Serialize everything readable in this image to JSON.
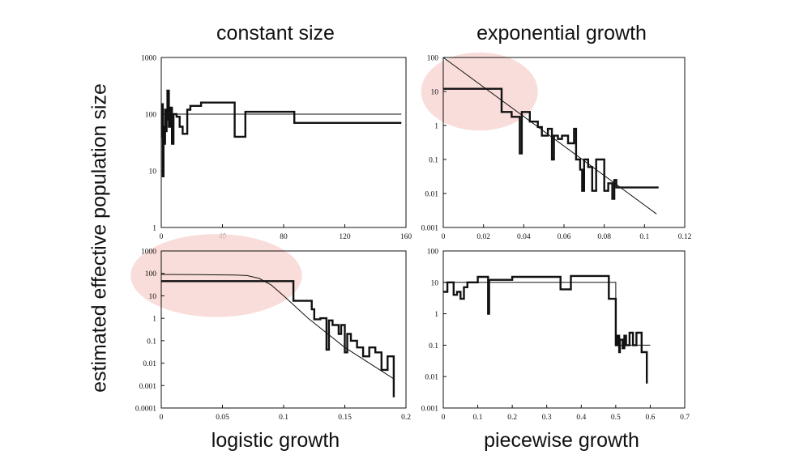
{
  "figure": {
    "ylabel": "estimated effective population size",
    "titles": {
      "constant": "constant size",
      "exponential": "exponential growth",
      "logistic": "logistic growth",
      "piecewise": "piecewise growth"
    },
    "highlight_color": "#f8d7d3"
  },
  "chart_data": [
    {
      "id": "constant",
      "type": "line",
      "title": "constant size",
      "yscale": "log",
      "xlim": [
        0,
        160
      ],
      "ylim": [
        1,
        1000
      ],
      "xticks": [
        0,
        40,
        80,
        120,
        160
      ],
      "xticklabels": [
        "0",
        "40",
        "80",
        "120",
        "160"
      ],
      "yticks": [
        1,
        10,
        100,
        1000
      ],
      "yticklabels": [
        "1",
        "10",
        "100",
        "1000"
      ],
      "series": [
        {
          "role": "true",
          "style": "thin",
          "x": [
            0,
            157
          ],
          "y": [
            100,
            100
          ]
        },
        {
          "role": "estimate",
          "style": "step",
          "x": [
            0,
            0.5,
            1,
            1.5,
            2,
            2.5,
            3,
            3.5,
            4,
            5,
            6,
            7,
            8,
            10,
            12,
            14,
            17,
            19,
            26,
            32,
            48,
            55,
            87,
            157
          ],
          "y": [
            40,
            150,
            8,
            60,
            30,
            120,
            50,
            80,
            260,
            60,
            130,
            30,
            100,
            90,
            60,
            45,
            120,
            140,
            160,
            160,
            40,
            110,
            70,
            70
          ]
        }
      ],
      "highlight": null
    },
    {
      "id": "exponential",
      "type": "line",
      "title": "exponential growth",
      "yscale": "log",
      "xlim": [
        0,
        0.12
      ],
      "ylim": [
        0.001,
        100
      ],
      "xticks": [
        0,
        0.02,
        0.04,
        0.06,
        0.08,
        0.1,
        0.12
      ],
      "xticklabels": [
        "0",
        "0.02",
        "0.04",
        "0.06",
        "0.08",
        "0.1",
        "0.12"
      ],
      "yticks": [
        0.001,
        0.01,
        0.1,
        1,
        10,
        100
      ],
      "yticklabels": [
        "0.001",
        "0.01",
        "0.1",
        "1",
        "10",
        "100"
      ],
      "series": [
        {
          "role": "true",
          "style": "thin",
          "x": [
            0,
            0.106
          ],
          "y": [
            100,
            0.0025
          ]
        },
        {
          "role": "estimate",
          "style": "step",
          "x": [
            0,
            0.029,
            0.034,
            0.038,
            0.039,
            0.043,
            0.047,
            0.049,
            0.052,
            0.054,
            0.055,
            0.057,
            0.059,
            0.062,
            0.065,
            0.066,
            0.068,
            0.069,
            0.07,
            0.072,
            0.074,
            0.076,
            0.08,
            0.082,
            0.084,
            0.085,
            0.086,
            0.09,
            0.107
          ],
          "y": [
            12,
            2.5,
            1.8,
            0.15,
            2.5,
            1.3,
            0.9,
            0.5,
            0.8,
            0.1,
            0.5,
            0.4,
            0.5,
            0.3,
            0.8,
            0.1,
            0.05,
            0.012,
            0.1,
            0.06,
            0.012,
            0.1,
            0.012,
            0.02,
            0.007,
            0.025,
            0.015,
            0.015,
            0.015
          ]
        }
      ],
      "highlight": {
        "cx": 0.018,
        "cy": 10,
        "rx": 0.029,
        "logspan": 1.15
      }
    },
    {
      "id": "logistic",
      "type": "line",
      "title": "logistic growth",
      "yscale": "log",
      "xlim": [
        0,
        0.2
      ],
      "ylim": [
        0.0001,
        1000
      ],
      "xticks": [
        0,
        0.05,
        0.1,
        0.15,
        0.2
      ],
      "xticklabels": [
        "0",
        "0.05",
        "0.1",
        "0.15",
        "0.2"
      ],
      "yticks": [
        0.0001,
        0.001,
        0.01,
        0.1,
        1,
        10,
        100,
        1000
      ],
      "yticklabels": [
        "0.0001",
        "0.001",
        "0.01",
        "0.1",
        "1",
        "10",
        "100",
        "1000"
      ],
      "series": [
        {
          "role": "true",
          "style": "thin",
          "x": [
            0,
            0.03,
            0.06,
            0.07,
            0.08,
            0.09,
            0.1,
            0.12,
            0.15,
            0.19
          ],
          "y": [
            90,
            88,
            85,
            80,
            60,
            30,
            10,
            1,
            0.05,
            0.002
          ]
        },
        {
          "role": "estimate",
          "style": "step",
          "x": [
            0,
            0.108,
            0.123,
            0.125,
            0.13,
            0.135,
            0.137,
            0.14,
            0.145,
            0.147,
            0.15,
            0.152,
            0.155,
            0.16,
            0.165,
            0.17,
            0.175,
            0.18,
            0.185,
            0.19
          ],
          "y": [
            45,
            6,
            2.5,
            0.9,
            1,
            0.04,
            0.8,
            0.5,
            0.2,
            0.5,
            0.03,
            0.2,
            0.1,
            0.05,
            0.02,
            0.05,
            0.03,
            0.005,
            0.02,
            0.0003
          ]
        }
      ],
      "highlight": {
        "cx": 0.045,
        "cy": 80,
        "rx": 0.07,
        "logspan": 1.85
      }
    },
    {
      "id": "piecewise",
      "type": "line",
      "title": "piecewise growth",
      "yscale": "log",
      "xlim": [
        0,
        0.7
      ],
      "ylim": [
        0.001,
        100
      ],
      "xticks": [
        0,
        0.1,
        0.2,
        0.3,
        0.4,
        0.5,
        0.6,
        0.7
      ],
      "xticklabels": [
        "0",
        "0.1",
        "0.2",
        "0.3",
        "0.4",
        "0.5",
        "0.6",
        "0.7"
      ],
      "yticks": [
        0.001,
        0.01,
        0.1,
        1,
        10,
        100
      ],
      "yticklabels": [
        "0.001",
        "0.01",
        "0.1",
        "1",
        "10",
        "100"
      ],
      "series": [
        {
          "role": "true",
          "style": "thin",
          "x": [
            0,
            0.5,
            0.5,
            0.6
          ],
          "y": [
            10,
            10,
            0.1,
            0.1
          ]
        },
        {
          "role": "estimate",
          "style": "step",
          "x": [
            0,
            0.012,
            0.03,
            0.04,
            0.05,
            0.06,
            0.07,
            0.08,
            0.1,
            0.13,
            0.133,
            0.2,
            0.34,
            0.37,
            0.48,
            0.5,
            0.505,
            0.51,
            0.512,
            0.52,
            0.525,
            0.53,
            0.54,
            0.55,
            0.56,
            0.575,
            0.59
          ],
          "y": [
            5,
            10,
            4,
            5,
            3,
            7,
            10,
            10,
            15,
            1,
            12,
            15,
            6,
            16,
            3,
            0.1,
            0.2,
            0.06,
            0.15,
            0.08,
            0.2,
            0.1,
            0.25,
            0.1,
            0.25,
            0.06,
            0.006
          ]
        }
      ],
      "highlight": null
    }
  ]
}
